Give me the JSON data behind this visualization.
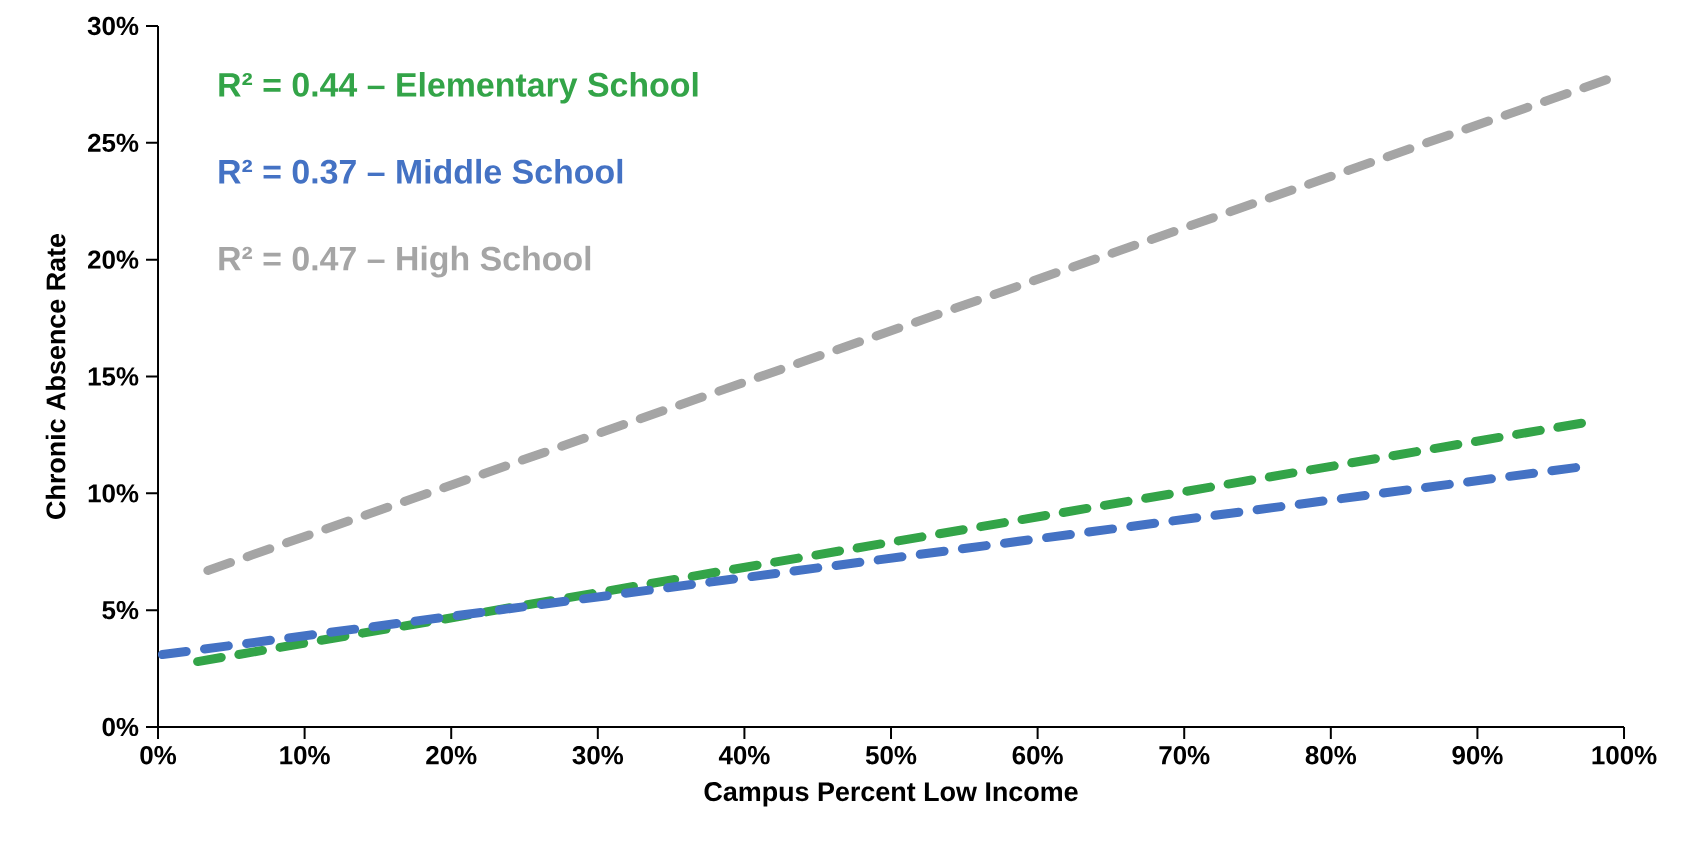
{
  "chart_data": {
    "type": "line",
    "xlabel": "Campus Percent Low Income",
    "ylabel": "Chronic Absence Rate",
    "xlim": [
      0,
      100
    ],
    "ylim": [
      0,
      30
    ],
    "xticks": [
      {
        "value": 0,
        "label": "0%"
      },
      {
        "value": 10,
        "label": "10%"
      },
      {
        "value": 20,
        "label": "20%"
      },
      {
        "value": 30,
        "label": "30%"
      },
      {
        "value": 40,
        "label": "40%"
      },
      {
        "value": 50,
        "label": "50%"
      },
      {
        "value": 60,
        "label": "60%"
      },
      {
        "value": 70,
        "label": "70%"
      },
      {
        "value": 80,
        "label": "80%"
      },
      {
        "value": 90,
        "label": "90%"
      },
      {
        "value": 100,
        "label": "100%"
      }
    ],
    "yticks": [
      {
        "value": 0,
        "label": "0%"
      },
      {
        "value": 5,
        "label": "5%"
      },
      {
        "value": 10,
        "label": "10%"
      },
      {
        "value": 15,
        "label": "15%"
      },
      {
        "value": 20,
        "label": "20%"
      },
      {
        "value": 25,
        "label": "25%"
      },
      {
        "value": 30,
        "label": "30%"
      }
    ],
    "grid": false,
    "legend": "top left",
    "line_style": "dashed",
    "marker": "none",
    "series": [
      {
        "name": "R² = 0.44 – Elementary School",
        "color": "#33a448",
        "x": [
          2.7,
          97.1
        ],
        "values": [
          2.8,
          13.0
        ]
      },
      {
        "name": "R² = 0.37 – Middle School",
        "color": "#4472c4",
        "x": [
          0.3,
          96.7
        ],
        "values": [
          3.1,
          11.1
        ]
      },
      {
        "name": "R² = 0.47 – High School",
        "color": "#a5a5a5",
        "x": [
          3.4,
          98.8
        ],
        "values": [
          6.7,
          27.7
        ]
      }
    ]
  }
}
